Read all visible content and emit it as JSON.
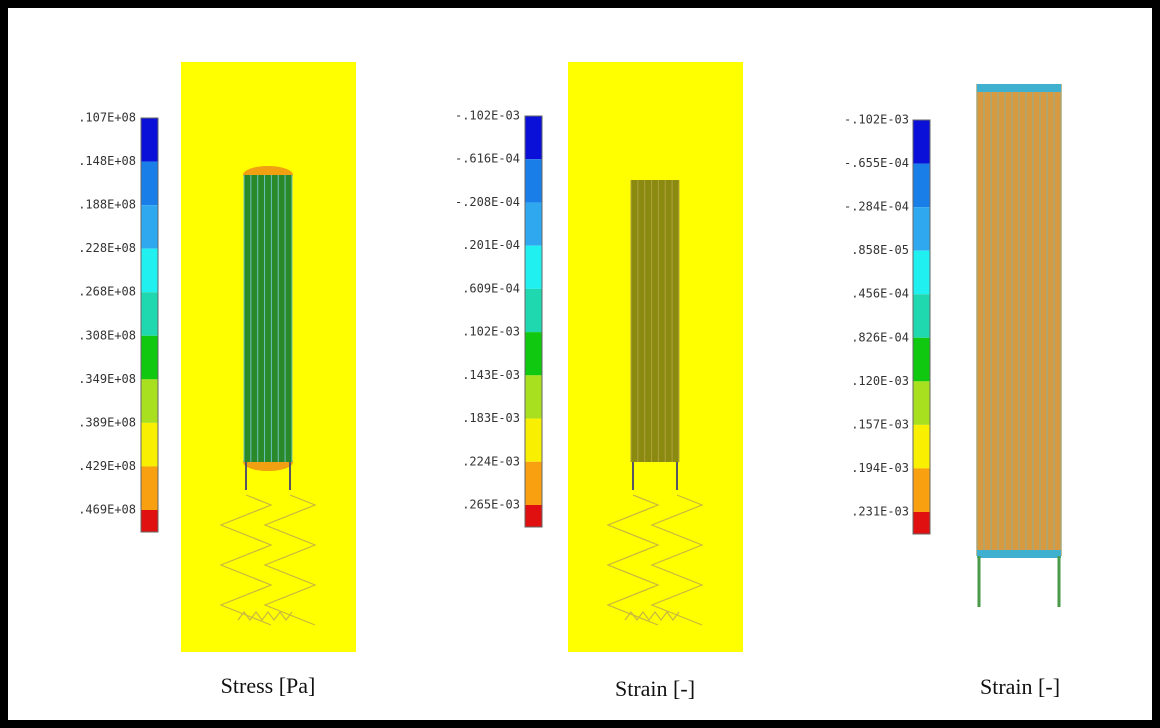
{
  "panels": [
    {
      "legend": [
        ".107E+08",
        ".148E+08",
        ".188E+08",
        ".228E+08",
        ".268E+08",
        ".308E+08",
        ".349E+08",
        ".389E+08",
        ".429E+08",
        ".469E+08"
      ],
      "caption": "Stress [Pa]"
    },
    {
      "legend": [
        "-.102E-03",
        "-.616E-04",
        "-.208E-04",
        ".201E-04",
        ".609E-04",
        ".102E-03",
        ".143E-03",
        ".183E-03",
        ".224E-03",
        ".265E-03"
      ],
      "caption": "Strain [-]"
    },
    {
      "legend": [
        "-.102E-03",
        "-.655E-04",
        "-.284E-04",
        ".858E-05",
        ".456E-04",
        ".826E-04",
        ".120E-03",
        ".157E-03",
        ".194E-03",
        ".231E-03"
      ],
      "caption": "Strain [-]"
    }
  ]
}
